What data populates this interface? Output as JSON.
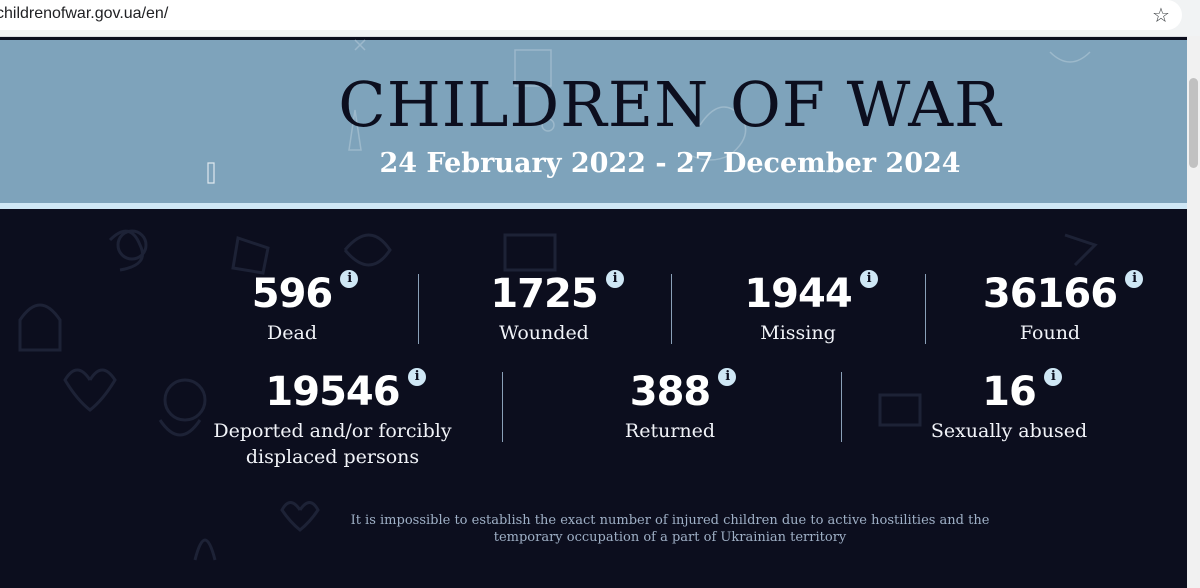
{
  "browser": {
    "url": "childrenofwar.gov.ua/en/",
    "bookmark_icon": "star-icon"
  },
  "header": {
    "title": "CHILDREN OF WAR",
    "period": "24 February 2022 - 27 December 2024"
  },
  "stats_row1": [
    {
      "value": "596",
      "label": "Dead",
      "info": "i"
    },
    {
      "value": "1725",
      "label": "Wounded",
      "info": "i"
    },
    {
      "value": "1944",
      "label": "Missing",
      "info": "i"
    },
    {
      "value": "36166",
      "label": "Found",
      "info": "i"
    }
  ],
  "stats_row2": [
    {
      "value": "19546",
      "label": "Deported and/or forcibly displaced persons",
      "info": "i"
    },
    {
      "value": "388",
      "label": "Returned",
      "info": "i"
    },
    {
      "value": "16",
      "label": "Sexually abused",
      "info": "i"
    }
  ],
  "footnote": "It is impossible to establish the exact number of injured children due to active hostilities and the temporary occupation of a part of Ukrainian territory",
  "colors": {
    "header_bg": "#7ea3bb",
    "page_bg": "#0c0e1e",
    "accent": "#cfe7f5"
  }
}
